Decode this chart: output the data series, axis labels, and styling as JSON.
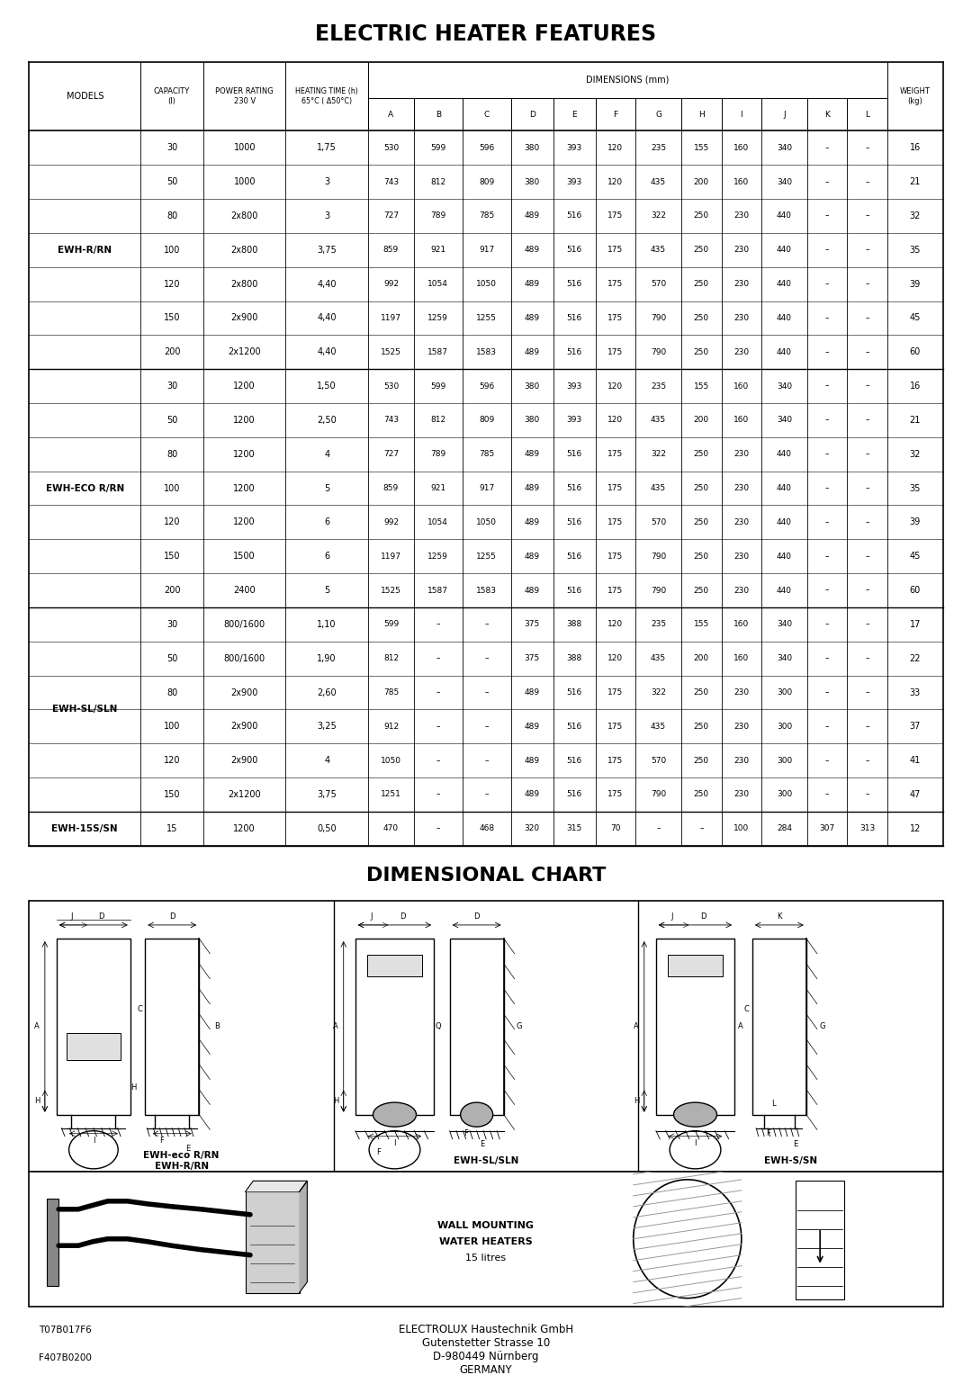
{
  "title1": "ELECTRIC HEATER FEATURES",
  "title2": "DIMENSIONAL CHART",
  "dim_cols": [
    "A",
    "B",
    "C",
    "D",
    "E",
    "F",
    "G",
    "H",
    "I",
    "J",
    "K",
    "L"
  ],
  "table_data": [
    [
      "EWH-R/RN",
      "30",
      "1000",
      "1,75",
      "530",
      "599",
      "596",
      "380",
      "393",
      "120",
      "235",
      "155",
      "160",
      "340",
      "–",
      "–",
      "16"
    ],
    [
      "EWH-R/RN",
      "50",
      "1000",
      "3",
      "743",
      "812",
      "809",
      "380",
      "393",
      "120",
      "435",
      "200",
      "160",
      "340",
      "–",
      "–",
      "21"
    ],
    [
      "EWH-R/RN",
      "80",
      "2x800",
      "3",
      "727",
      "789",
      "785",
      "489",
      "516",
      "175",
      "322",
      "250",
      "230",
      "440",
      "–",
      "–",
      "32"
    ],
    [
      "EWH-R/RN",
      "100",
      "2x800",
      "3,75",
      "859",
      "921",
      "917",
      "489",
      "516",
      "175",
      "435",
      "250",
      "230",
      "440",
      "–",
      "–",
      "35"
    ],
    [
      "EWH-R/RN",
      "120",
      "2x800",
      "4,40",
      "992",
      "1054",
      "1050",
      "489",
      "516",
      "175",
      "570",
      "250",
      "230",
      "440",
      "–",
      "–",
      "39"
    ],
    [
      "EWH-R/RN",
      "150",
      "2x900",
      "4,40",
      "1197",
      "1259",
      "1255",
      "489",
      "516",
      "175",
      "790",
      "250",
      "230",
      "440",
      "–",
      "–",
      "45"
    ],
    [
      "EWH-R/RN",
      "200",
      "2x1200",
      "4,40",
      "1525",
      "1587",
      "1583",
      "489",
      "516",
      "175",
      "790",
      "250",
      "230",
      "440",
      "–",
      "–",
      "60"
    ],
    [
      "EWH-ECO R/RN",
      "30",
      "1200",
      "1,50",
      "530",
      "599",
      "596",
      "380",
      "393",
      "120",
      "235",
      "155",
      "160",
      "340",
      "–",
      "–",
      "16"
    ],
    [
      "EWH-ECO R/RN",
      "50",
      "1200",
      "2,50",
      "743",
      "812",
      "809",
      "380",
      "393",
      "120",
      "435",
      "200",
      "160",
      "340",
      "–",
      "–",
      "21"
    ],
    [
      "EWH-ECO R/RN",
      "80",
      "1200",
      "4",
      "727",
      "789",
      "785",
      "489",
      "516",
      "175",
      "322",
      "250",
      "230",
      "440",
      "–",
      "–",
      "32"
    ],
    [
      "EWH-ECO R/RN",
      "100",
      "1200",
      "5",
      "859",
      "921",
      "917",
      "489",
      "516",
      "175",
      "435",
      "250",
      "230",
      "440",
      "–",
      "–",
      "35"
    ],
    [
      "EWH-ECO R/RN",
      "120",
      "1200",
      "6",
      "992",
      "1054",
      "1050",
      "489",
      "516",
      "175",
      "570",
      "250",
      "230",
      "440",
      "–",
      "–",
      "39"
    ],
    [
      "EWH-ECO R/RN",
      "150",
      "1500",
      "6",
      "1197",
      "1259",
      "1255",
      "489",
      "516",
      "175",
      "790",
      "250",
      "230",
      "440",
      "–",
      "–",
      "45"
    ],
    [
      "EWH-ECO R/RN",
      "200",
      "2400",
      "5",
      "1525",
      "1587",
      "1583",
      "489",
      "516",
      "175",
      "790",
      "250",
      "230",
      "440",
      "–",
      "–",
      "60"
    ],
    [
      "EWH-SL/SLN",
      "30",
      "800/1600",
      "1,10",
      "599",
      "–",
      "–",
      "375",
      "388",
      "120",
      "235",
      "155",
      "160",
      "340",
      "–",
      "–",
      "17"
    ],
    [
      "EWH-SL/SLN",
      "50",
      "800/1600",
      "1,90",
      "812",
      "–",
      "–",
      "375",
      "388",
      "120",
      "435",
      "200",
      "160",
      "340",
      "–",
      "–",
      "22"
    ],
    [
      "EWH-SL/SLN",
      "80",
      "2x900",
      "2,60",
      "785",
      "–",
      "–",
      "489",
      "516",
      "175",
      "322",
      "250",
      "230",
      "300",
      "–",
      "–",
      "33"
    ],
    [
      "EWH-SL/SLN",
      "100",
      "2x900",
      "3,25",
      "912",
      "–",
      "–",
      "489",
      "516",
      "175",
      "435",
      "250",
      "230",
      "300",
      "–",
      "–",
      "37"
    ],
    [
      "EWH-SL/SLN",
      "120",
      "2x900",
      "4",
      "1050",
      "–",
      "–",
      "489",
      "516",
      "175",
      "570",
      "250",
      "230",
      "300",
      "–",
      "–",
      "41"
    ],
    [
      "EWH-SL/SLN",
      "150",
      "2x1200",
      "3,75",
      "1251",
      "–",
      "–",
      "489",
      "516",
      "175",
      "790",
      "250",
      "230",
      "300",
      "–",
      "–",
      "47"
    ],
    [
      "EWH-15S/SN",
      "15",
      "1200",
      "0,50",
      "470",
      "–",
      "468",
      "320",
      "315",
      "70",
      "–",
      "–",
      "100",
      "284",
      "307",
      "313",
      "12"
    ]
  ],
  "groups": [
    {
      "name": "EWH-R/RN",
      "rows": [
        0,
        1,
        2,
        3,
        4,
        5,
        6
      ]
    },
    {
      "name": "EWH-ECO R/RN",
      "rows": [
        7,
        8,
        9,
        10,
        11,
        12,
        13
      ]
    },
    {
      "name": "EWH-SL/SLN",
      "rows": [
        14,
        15,
        16,
        17,
        18,
        19
      ]
    },
    {
      "name": "EWH-15S/SN",
      "rows": [
        20
      ]
    }
  ],
  "footer_left1": "T07B017F6",
  "footer_left2": "F407B0200",
  "footer_center1": "ELECTROLUX Haustechnik GmbH",
  "footer_center2": "Gutenstetter Strasse 10",
  "footer_center3": "D-980449 Nürnberg",
  "footer_center4": "GERMANY",
  "wall_mounting_text1": "WALL MOUNTING",
  "wall_mounting_text2": "WATER HEATERS",
  "wall_mounting_text3": "15 litres",
  "diagram_label1a": "EWH-eco R/RN",
  "diagram_label1b": "EWH-R/RN",
  "diagram_label2": "EWH-SL/SLN",
  "diagram_label3": "EWH-S/SN"
}
